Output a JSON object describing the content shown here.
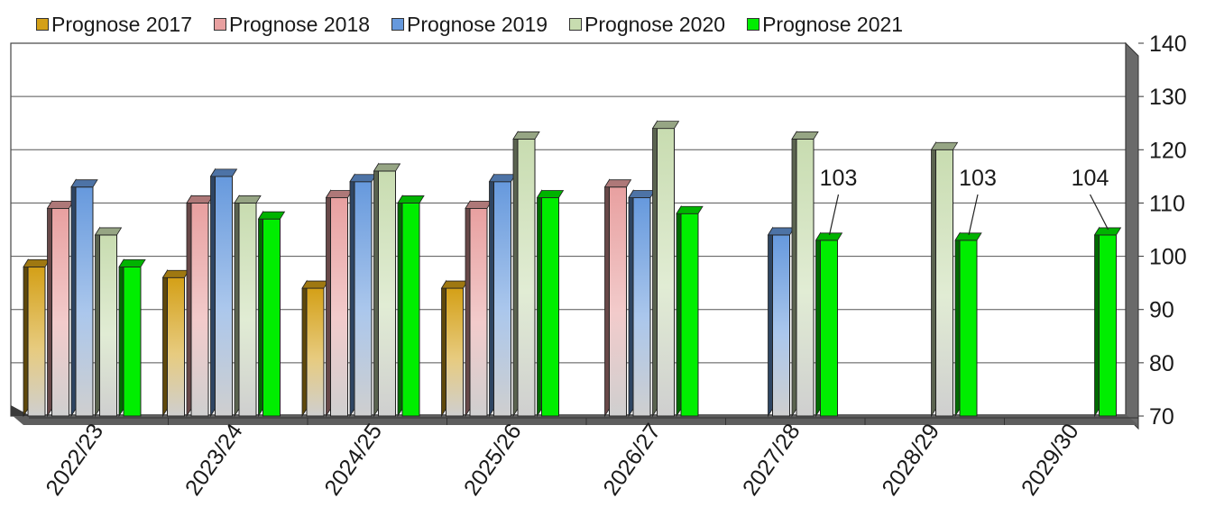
{
  "chart_data": {
    "type": "bar",
    "categories": [
      "2022/23",
      "2023/24",
      "2024/25",
      "2025/26",
      "2026/27",
      "2027/28",
      "2028/29",
      "2029/30"
    ],
    "series": [
      {
        "name": "Prognose 2017",
        "color": "#d4a017",
        "values": [
          98,
          96,
          94,
          94,
          null,
          null,
          null,
          null
        ]
      },
      {
        "name": "Prognose 2018",
        "color": "#e8a0a0",
        "values": [
          109,
          110,
          111,
          109,
          113,
          null,
          null,
          null
        ]
      },
      {
        "name": "Prognose 2019",
        "color": "#6699dd",
        "values": [
          113,
          115,
          114,
          114,
          111,
          104,
          null,
          null
        ]
      },
      {
        "name": "Prognose 2020",
        "color": "#c8dcb0",
        "values": [
          104,
          110,
          116,
          122,
          124,
          122,
          120,
          null
        ]
      },
      {
        "name": "Prognose 2021",
        "color": "#00ee00",
        "values": [
          98,
          107,
          110,
          111,
          108,
          103,
          103,
          104
        ]
      }
    ],
    "data_labels": [
      {
        "category": "2027/28",
        "series": "Prognose 2021",
        "text": "103"
      },
      {
        "category": "2028/29",
        "series": "Prognose 2021",
        "text": "103"
      },
      {
        "category": "2029/30",
        "series": "Prognose 2021",
        "text": "104"
      }
    ],
    "yticks": [
      "70",
      "80",
      "90",
      "100",
      "110",
      "120",
      "130",
      "140"
    ],
    "ylim": [
      70,
      140
    ],
    "grid": true,
    "legend_position": "top"
  }
}
